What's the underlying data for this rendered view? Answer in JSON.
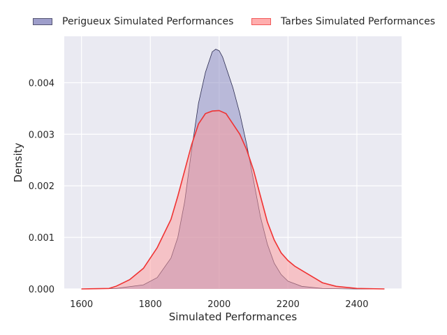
{
  "chart_data": {
    "type": "area",
    "title": "",
    "xlabel": "Simulated Performances",
    "ylabel": "Density",
    "xlim": [
      1550,
      2530
    ],
    "ylim": [
      0,
      0.0049
    ],
    "xticks": [
      1600,
      1800,
      2000,
      2200,
      2400
    ],
    "xtick_labels": [
      "1600",
      "1800",
      "2000",
      "2200",
      "2400"
    ],
    "yticks": [
      0,
      0.001,
      0.002,
      0.003,
      0.004
    ],
    "ytick_labels": [
      "0.000",
      "0.001",
      "0.002",
      "0.003",
      "0.004"
    ],
    "grid": true,
    "legend_position": "top",
    "series": [
      {
        "name": "Perigueux Simulated Performances",
        "fill_color": "#8787bf",
        "line_color": "#2b2b4f",
        "x": [
          1600,
          1700,
          1780,
          1820,
          1860,
          1880,
          1900,
          1920,
          1940,
          1960,
          1980,
          1990,
          2000,
          2010,
          2020,
          2040,
          2060,
          2080,
          2100,
          2120,
          2140,
          2160,
          2180,
          2200,
          2240,
          2300,
          2400,
          2480
        ],
        "y": [
          0.0,
          1e-05,
          8e-05,
          0.00022,
          0.0006,
          0.001,
          0.0017,
          0.0027,
          0.0036,
          0.0042,
          0.0046,
          0.00465,
          0.00462,
          0.0045,
          0.0043,
          0.0039,
          0.0034,
          0.0028,
          0.0021,
          0.0014,
          0.00087,
          0.0005,
          0.00028,
          0.00015,
          5e-05,
          1e-05,
          0.0,
          0.0
        ]
      },
      {
        "name": "Tarbes Simulated Performances",
        "fill_color": "#ff9a9a",
        "line_color": "#f03232",
        "x": [
          1600,
          1680,
          1700,
          1740,
          1780,
          1820,
          1860,
          1880,
          1900,
          1920,
          1940,
          1960,
          1980,
          2000,
          2020,
          2040,
          2060,
          2080,
          2100,
          2120,
          2140,
          2160,
          2180,
          2200,
          2220,
          2240,
          2260,
          2280,
          2300,
          2340,
          2400,
          2480
        ],
        "y": [
          0.0,
          1e-05,
          5e-05,
          0.00018,
          0.0004,
          0.0008,
          0.00135,
          0.0018,
          0.0023,
          0.0028,
          0.0032,
          0.0034,
          0.00345,
          0.00346,
          0.0034,
          0.0032,
          0.003,
          0.0027,
          0.0023,
          0.0018,
          0.0013,
          0.00095,
          0.0007,
          0.00055,
          0.00044,
          0.00036,
          0.00028,
          0.0002,
          0.00012,
          5e-05,
          1e-05,
          0.0
        ]
      }
    ]
  }
}
